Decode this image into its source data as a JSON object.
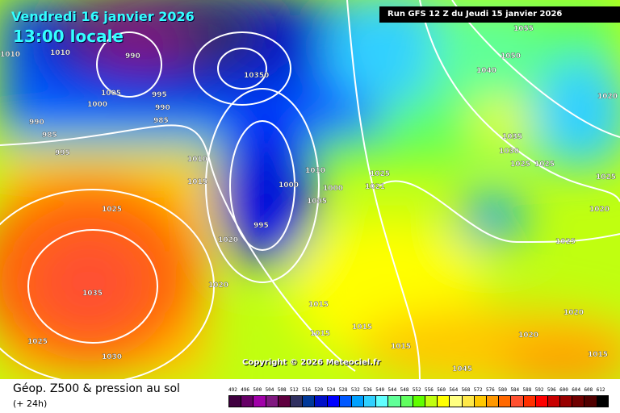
{
  "header": {
    "date": "Vendredi 16 janvier 2026",
    "time": "13:00 locale",
    "run": "Run GFS 12 Z du Jeudi 15 janvier 2026"
  },
  "copyright": "Copyright © 2026 Meteociel.fr",
  "footer": {
    "title": "Géop. Z500 & pression au sol",
    "subtitle": "(+ 24h)"
  },
  "legend": {
    "labels": [
      "492",
      "496",
      "500",
      "504",
      "508",
      "512",
      "516",
      "520",
      "524",
      "528",
      "532",
      "536",
      "540",
      "544",
      "548",
      "552",
      "556",
      "560",
      "564",
      "568",
      "572",
      "576",
      "580",
      "584",
      "588",
      "592",
      "596",
      "600",
      "604",
      "608",
      "612"
    ],
    "colors": [
      "#400040",
      "#660066",
      "#a000a8",
      "#801880",
      "#600040",
      "#303060",
      "#003898",
      "#0010c8",
      "#0000ff",
      "#0058ff",
      "#00a0ff",
      "#30d0ff",
      "#60ffff",
      "#60ff98",
      "#60ff60",
      "#60ff00",
      "#c0ff10",
      "#ffff00",
      "#ffff80",
      "#ffe848",
      "#ffc800",
      "#ff9800",
      "#ff6800",
      "#ff5030",
      "#ff3000",
      "#ff0000",
      "#c80000",
      "#980000",
      "#700000",
      "#500000",
      "#000000"
    ]
  },
  "isobar_labels": [
    "1010",
    "1010",
    "990",
    "1005",
    "1000",
    "995",
    "990",
    "985",
    "990",
    "985",
    "995",
    "1010",
    "1025",
    "10350",
    "1000",
    "1015",
    "1010",
    "995",
    "1005",
    "1000",
    "1025",
    "1020",
    "1035",
    "1025",
    "1030",
    "1020",
    "1015",
    "1015",
    "1015",
    "1015",
    "1020",
    "1021",
    "1055",
    "1050",
    "1040",
    "1035",
    "1030",
    "1025",
    "1025",
    "1025",
    "1020",
    "1025",
    "1020",
    "1020",
    "1015",
    "1045"
  ]
}
